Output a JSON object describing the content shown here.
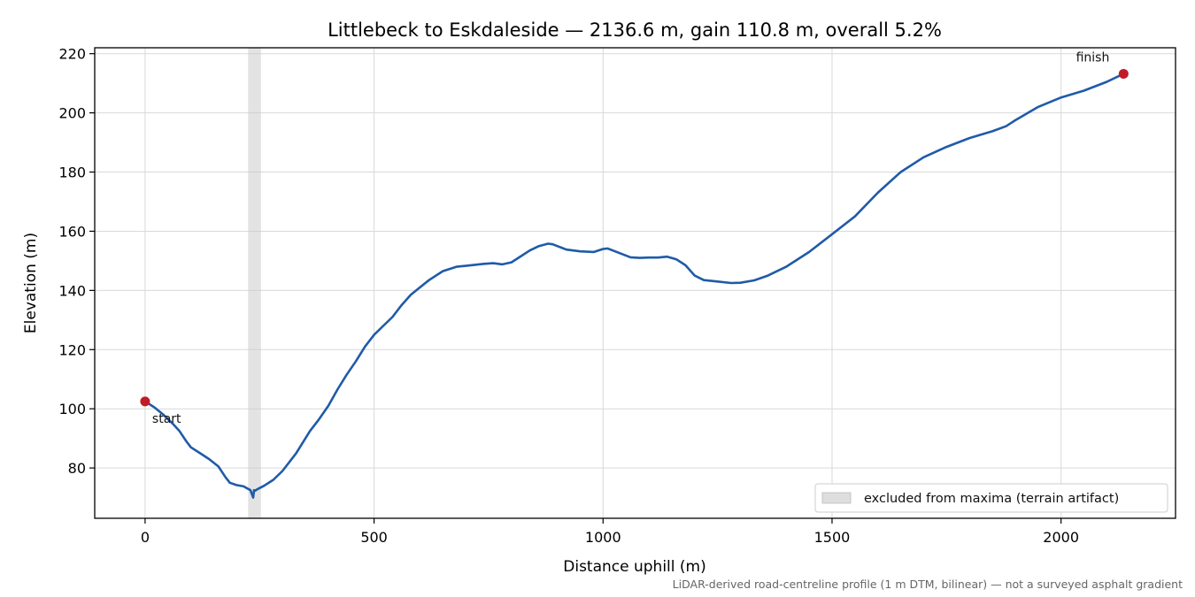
{
  "chart_data": {
    "type": "line",
    "title": "Littlebeck to Eskdaleside — 2136.6 m, gain 110.8 m, overall 5.2%",
    "xlabel": "Distance uphill (m)",
    "ylabel": "Elevation (m)",
    "xlim": [
      -110,
      2250
    ],
    "ylim": [
      63,
      222
    ],
    "xticks": [
      0,
      500,
      1000,
      1500,
      2000
    ],
    "yticks": [
      80,
      100,
      120,
      140,
      160,
      180,
      200,
      220
    ],
    "grid": true,
    "legend_position": "lower-right",
    "excluded_region": {
      "x": [
        225,
        253
      ],
      "label": "excluded from maxima (terrain artifact)"
    },
    "series": [
      {
        "color": "#1f5ba8",
        "x": [
          0,
          20,
          40,
          60,
          75,
          90,
          100,
          120,
          140,
          160,
          175,
          185,
          200,
          215,
          230,
          236,
          238,
          240,
          245,
          260,
          280,
          300,
          330,
          360,
          380,
          400,
          420,
          440,
          460,
          480,
          500,
          520,
          540,
          560,
          580,
          600,
          620,
          650,
          680,
          700,
          740,
          760,
          780,
          800,
          820,
          840,
          860,
          880,
          890,
          900,
          920,
          950,
          980,
          1000,
          1010,
          1030,
          1060,
          1080,
          1100,
          1120,
          1140,
          1160,
          1180,
          1200,
          1220,
          1250,
          1280,
          1300,
          1330,
          1360,
          1400,
          1450,
          1500,
          1550,
          1600,
          1650,
          1700,
          1750,
          1800,
          1850,
          1880,
          1900,
          1950,
          2000,
          2050,
          2100,
          2136.6
        ],
        "y": [
          102.5,
          100.5,
          98,
          95,
          92.5,
          89,
          87,
          85,
          83,
          80.5,
          77,
          75,
          74.2,
          73.8,
          72.5,
          70,
          72.5,
          72.3,
          72.8,
          74,
          76,
          79,
          85,
          92.5,
          96.5,
          101,
          106.5,
          111.5,
          116,
          121,
          125,
          128,
          131,
          135,
          138.5,
          141,
          143.5,
          146.5,
          148,
          148.3,
          149,
          149.2,
          148.8,
          149.5,
          151.5,
          153.5,
          155,
          155.8,
          155.6,
          155,
          153.8,
          153.2,
          153,
          154,
          154.2,
          153,
          151.2,
          151,
          151.1,
          151.1,
          151.4,
          150.5,
          148.5,
          145,
          143.5,
          143,
          142.5,
          142.6,
          143.4,
          145,
          148,
          153,
          159,
          165,
          173,
          180,
          185,
          188.5,
          191.5,
          193.8,
          195.5,
          197.5,
          202,
          205.2,
          207.5,
          210.5,
          213.2
        ]
      }
    ],
    "points": [
      {
        "x": 0,
        "y": 102.5,
        "label": "start",
        "color": "#c01c28"
      },
      {
        "x": 2136.6,
        "y": 213.2,
        "label": "finish",
        "color": "#c01c28"
      }
    ],
    "footnote": "LiDAR-derived road-centreline profile (1 m DTM, bilinear) — not a surveyed asphalt gradient"
  }
}
